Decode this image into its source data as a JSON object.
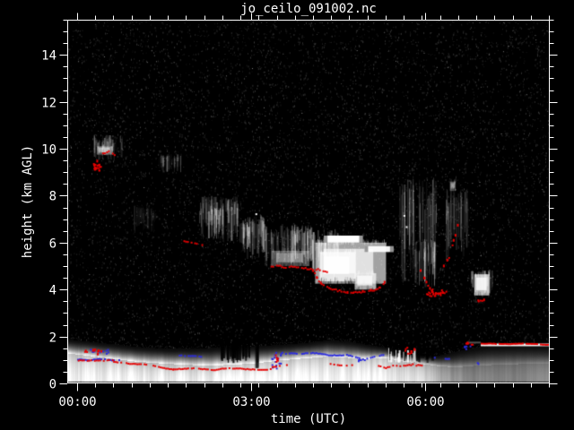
{
  "chart_data": {
    "type": "heatmap",
    "title": "jo_ceilo_091002.nc",
    "xlabel": "time (UTC)",
    "ylabel": "height (km AGL)",
    "x_range": [
      -0.17,
      8.14
    ],
    "y_range_km": [
      0,
      15.5
    ],
    "x_ticks": [
      {
        "value": 0,
        "label": "00:00"
      },
      {
        "value": 3,
        "label": "03:00"
      },
      {
        "value": 6,
        "label": "06:00"
      }
    ],
    "x_minor_step": 0.3125,
    "y_ticks": [
      {
        "value": 0,
        "label": "0"
      },
      {
        "value": 2,
        "label": "2"
      },
      {
        "value": 4,
        "label": "4"
      },
      {
        "value": 6,
        "label": "6"
      },
      {
        "value": 8,
        "label": "8"
      },
      {
        "value": 10,
        "label": "10"
      },
      {
        "value": 12,
        "label": "12"
      },
      {
        "value": 14,
        "label": "14"
      }
    ],
    "y_minor_step": 0.5,
    "colors": {
      "background": "#000000",
      "frame": "#ffffff",
      "text": "#ffffff",
      "red_dots": "#e60000",
      "blue_dots": "#2b2bdf"
    },
    "boundary_layer_profile": [
      [
        -0.17,
        1.3,
        1.9,
        1.0
      ],
      [
        0.0,
        1.25,
        1.85,
        1.0
      ],
      [
        0.5,
        1.1,
        1.72,
        1.0
      ],
      [
        1.0,
        0.95,
        1.58,
        1.0
      ],
      [
        1.5,
        0.86,
        1.5,
        1.0
      ],
      [
        2.0,
        0.8,
        1.5,
        1.0
      ],
      [
        2.5,
        0.8,
        1.55,
        1.0
      ],
      [
        3.0,
        0.86,
        1.6,
        1.0
      ],
      [
        3.5,
        1.0,
        1.66,
        1.0
      ],
      [
        4.0,
        1.1,
        1.76,
        1.0
      ],
      [
        4.3,
        1.16,
        1.86,
        1.0
      ],
      [
        4.7,
        1.1,
        1.8,
        1.0
      ],
      [
        5.0,
        1.06,
        1.66,
        1.0
      ],
      [
        5.3,
        1.1,
        1.56,
        1.0
      ],
      [
        5.6,
        0.96,
        1.36,
        0.95
      ],
      [
        5.9,
        0.86,
        1.22,
        0.85
      ],
      [
        6.2,
        0.76,
        1.2,
        0.65
      ],
      [
        6.5,
        0.7,
        1.36,
        0.5
      ],
      [
        6.8,
        0.76,
        1.52,
        0.45
      ],
      [
        7.1,
        0.8,
        1.62,
        0.45
      ],
      [
        7.6,
        0.84,
        1.66,
        0.45
      ],
      [
        8.14,
        0.84,
        1.62,
        0.45
      ]
    ],
    "cloud_features": [
      {
        "kind": "streaks",
        "t0": 0.28,
        "t1": 0.8,
        "km0": 9.4,
        "km1": 10.6,
        "i": 0.4
      },
      {
        "kind": "blob",
        "t0": 0.34,
        "t1": 0.62,
        "km0": 9.75,
        "km1": 10.1,
        "i": 0.55
      },
      {
        "kind": "streaks",
        "t0": 1.4,
        "t1": 1.78,
        "km0": 8.9,
        "km1": 9.8,
        "i": 0.3
      },
      {
        "kind": "streaks",
        "t0": 0.95,
        "t1": 1.35,
        "km0": 6.3,
        "km1": 7.6,
        "i": 0.16
      },
      {
        "kind": "streaks",
        "t0": 2.1,
        "t1": 2.78,
        "km0": 5.8,
        "km1": 8.0,
        "i": 0.5
      },
      {
        "kind": "streaks",
        "t0": 2.25,
        "t1": 2.52,
        "km0": 6.0,
        "km1": 7.6,
        "i": 0.7
      },
      {
        "kind": "streaks",
        "t0": 2.8,
        "t1": 3.22,
        "km0": 5.1,
        "km1": 7.2,
        "i": 0.6
      },
      {
        "kind": "streaks",
        "t0": 2.82,
        "t1": 2.98,
        "km0": 5.4,
        "km1": 6.9,
        "i": 0.8
      },
      {
        "kind": "streaks",
        "t0": 3.22,
        "t1": 4.02,
        "km0": 4.8,
        "km1": 6.8,
        "i": 0.6
      },
      {
        "kind": "blob",
        "t0": 3.35,
        "t1": 4.0,
        "km0": 5.0,
        "km1": 5.65,
        "i": 0.4
      },
      {
        "kind": "streaks",
        "t0": 4.0,
        "t1": 4.5,
        "km0": 4.1,
        "km1": 6.6,
        "i": 0.75
      },
      {
        "kind": "blob",
        "t0": 4.1,
        "t1": 5.32,
        "km0": 4.25,
        "km1": 6.0,
        "i": 0.85
      },
      {
        "kind": "blob",
        "t0": 4.18,
        "t1": 4.8,
        "km0": 4.35,
        "km1": 5.6,
        "i": 1.0
      },
      {
        "kind": "blob",
        "t0": 4.78,
        "t1": 5.15,
        "km0": 4.0,
        "km1": 4.7,
        "i": 0.9
      },
      {
        "kind": "hline",
        "t0": 4.25,
        "t1": 4.92,
        "km0": 6.0,
        "km1": 6.3,
        "i": 1.0
      },
      {
        "kind": "hline",
        "t0": 4.95,
        "t1": 5.45,
        "km0": 5.6,
        "km1": 5.85,
        "i": 0.95
      },
      {
        "kind": "streaks",
        "t0": 5.55,
        "t1": 6.18,
        "km0": 3.9,
        "km1": 8.8,
        "i": 0.4
      },
      {
        "kind": "streaks",
        "t0": 5.8,
        "t1": 6.18,
        "km0": 3.9,
        "km1": 6.2,
        "i": 0.55
      },
      {
        "kind": "streaks",
        "t0": 6.35,
        "t1": 6.75,
        "km0": 5.0,
        "km1": 8.3,
        "i": 0.32
      },
      {
        "kind": "blob",
        "t0": 6.42,
        "t1": 6.52,
        "km0": 8.2,
        "km1": 8.6,
        "i": 0.45
      },
      {
        "kind": "blob",
        "t0": 6.84,
        "t1": 7.1,
        "km0": 3.75,
        "km1": 4.65,
        "i": 1.0
      },
      {
        "kind": "streaks",
        "t0": 6.78,
        "t1": 7.14,
        "km0": 3.6,
        "km1": 4.85,
        "i": 0.5
      }
    ],
    "white_dots": [
      [
        3.07,
        7.25
      ],
      [
        5.62,
        7.18
      ],
      [
        5.66,
        6.7
      ]
    ],
    "attenuation_gaps": [
      {
        "t0": 2.45,
        "t1": 2.77,
        "km0": 0.85,
        "km1": 1.7,
        "i": 0.9
      },
      {
        "t0": 2.8,
        "t1": 2.97,
        "km0": 0.9,
        "km1": 1.6,
        "i": 0.8
      },
      {
        "t0": 3.05,
        "t1": 3.13,
        "km0": 0.6,
        "km1": 1.55,
        "i": 0.8
      },
      {
        "t0": 5.35,
        "t1": 5.78,
        "km0": 0.95,
        "km1": 1.65,
        "i": 0.85
      },
      {
        "t0": 5.78,
        "t1": 6.12,
        "km0": 0.85,
        "km1": 1.35,
        "i": 0.7
      }
    ],
    "bright_spike_region": {
      "t0": 5.28,
      "t1": 5.8,
      "km_base": 0.9,
      "km_min": 1.05,
      "km_max": 1.55
    },
    "elevated_layer_line": {
      "t0": 6.95,
      "t1": 8.14,
      "km": 1.7,
      "lead_t0": 6.72,
      "lead_t1": 6.95,
      "lead_km": 1.78
    },
    "red_dots": {
      "tracks": [
        {
          "t0": -0.02,
          "t1": 0.62,
          "k0": 1.0,
          "k1": 0.96,
          "w": 0.07,
          "d": 0.75
        },
        {
          "t0": 0.62,
          "t1": 1.65,
          "k0": 0.95,
          "k1": 0.67,
          "w": 0.05,
          "d": 0.8
        },
        {
          "t0": 1.65,
          "t1": 3.35,
          "k0": 0.65,
          "k1": 0.68,
          "w": 0.06,
          "d": 0.85
        },
        {
          "t0": 3.35,
          "t1": 3.62,
          "k0": 0.74,
          "k1": 0.82,
          "w": 0.05,
          "d": 0.6
        },
        {
          "t0": 4.35,
          "t1": 4.75,
          "k0": 0.86,
          "k1": 0.83,
          "w": 0.05,
          "d": 0.35
        },
        {
          "t0": 5.18,
          "t1": 5.95,
          "k0": 0.78,
          "k1": 0.84,
          "w": 0.12,
          "d": 0.7
        },
        {
          "t0": 6.95,
          "t1": 8.13,
          "k0": 1.74,
          "k1": 1.71,
          "w": 0.03,
          "d": 0.9
        },
        {
          "t0": 1.8,
          "t1": 2.16,
          "k0": 6.08,
          "k1": 5.95,
          "w": 0.06,
          "d": 0.45
        },
        {
          "t0": 3.3,
          "t1": 4.3,
          "k0": 5.1,
          "k1": 4.78,
          "w": 0.15,
          "d": 0.8
        }
      ],
      "paths": [
        {
          "d": 0.8,
          "pts": [
            [
              0.3,
              9.35
            ],
            [
              0.34,
              9.55
            ],
            [
              0.4,
              9.75
            ],
            [
              0.47,
              9.88
            ],
            [
              0.54,
              9.9
            ],
            [
              0.6,
              9.82
            ],
            [
              0.66,
              9.7
            ]
          ]
        },
        {
          "d": 0.9,
          "pts": [
            [
              4.05,
              4.85
            ],
            [
              4.12,
              4.5
            ],
            [
              4.2,
              4.25
            ],
            [
              4.35,
              4.05
            ],
            [
              4.55,
              3.95
            ],
            [
              4.75,
              3.92
            ],
            [
              4.95,
              3.96
            ],
            [
              5.1,
              4.02
            ],
            [
              5.2,
              4.12
            ],
            [
              5.28,
              4.35
            ],
            [
              5.33,
              4.62
            ],
            [
              5.3,
              4.85
            ]
          ]
        },
        {
          "d": 0.7,
          "pts": [
            [
              5.9,
              4.9
            ],
            [
              5.97,
              4.55
            ],
            [
              6.03,
              4.2
            ],
            [
              6.1,
              3.95
            ],
            [
              6.22,
              3.85
            ],
            [
              6.35,
              3.95
            ]
          ]
        },
        {
          "d": 0.55,
          "pts": [
            [
              6.3,
              5.05
            ],
            [
              6.36,
              5.3
            ],
            [
              6.42,
              5.5
            ],
            [
              6.47,
              6.15
            ],
            [
              6.51,
              6.45
            ],
            [
              6.57,
              7.15
            ],
            [
              6.61,
              7.38
            ]
          ]
        },
        {
          "d": 0.5,
          "pts": [
            [
              6.8,
              3.62
            ],
            [
              6.9,
              3.55
            ],
            [
              7.0,
              3.6
            ],
            [
              7.08,
              3.72
            ]
          ]
        }
      ],
      "clusters": [
        {
          "t0": 0.1,
          "t1": 0.42,
          "k0": 1.25,
          "k1": 1.5,
          "n": 14
        },
        {
          "t0": 0.27,
          "t1": 0.4,
          "k0": 9.1,
          "k1": 9.45,
          "n": 22
        },
        {
          "t0": 6.0,
          "t1": 6.3,
          "k0": 3.75,
          "k1": 4.05,
          "n": 18
        },
        {
          "t0": 6.68,
          "t1": 6.8,
          "k0": 1.68,
          "k1": 1.8,
          "n": 6
        },
        {
          "t0": 3.4,
          "t1": 3.46,
          "k0": 0.95,
          "k1": 1.25,
          "n": 7
        },
        {
          "t0": 5.62,
          "t1": 5.8,
          "k0": 1.3,
          "k1": 1.6,
          "n": 10
        }
      ]
    },
    "blue_dots": {
      "tracks": [
        {
          "t0": 0.0,
          "t1": 0.72,
          "k0": 1.04,
          "k1": 1.06,
          "w": 0.06,
          "d": 0.8
        },
        {
          "t0": 1.75,
          "t1": 2.14,
          "k0": 1.21,
          "k1": 1.18,
          "w": 0.04,
          "d": 0.7
        },
        {
          "t0": 3.52,
          "t1": 4.6,
          "k0": 1.36,
          "k1": 1.28,
          "w": 0.07,
          "d": 0.75
        },
        {
          "t0": 4.6,
          "t1": 4.95,
          "k0": 1.26,
          "k1": 1.06,
          "w": 0.05,
          "d": 0.7
        },
        {
          "t0": 4.95,
          "t1": 5.32,
          "k0": 1.1,
          "k1": 1.3,
          "w": 0.06,
          "d": 0.7
        },
        {
          "t0": 6.02,
          "t1": 6.4,
          "k0": 1.16,
          "k1": 1.06,
          "w": 0.05,
          "d": 0.4
        }
      ],
      "paths": [],
      "clusters": [
        {
          "t0": 0.15,
          "t1": 0.55,
          "k0": 1.25,
          "k1": 1.48,
          "n": 10
        },
        {
          "t0": 3.33,
          "t1": 3.54,
          "k0": 0.62,
          "k1": 1.4,
          "n": 16
        },
        {
          "t0": 6.62,
          "t1": 6.76,
          "k0": 1.45,
          "k1": 1.72,
          "n": 5
        },
        {
          "t0": 6.84,
          "t1": 6.9,
          "k0": 0.85,
          "k1": 0.95,
          "n": 2
        },
        {
          "t0": 4.78,
          "t1": 4.92,
          "k0": 0.95,
          "k1": 1.05,
          "n": 4
        }
      ]
    },
    "noise": {
      "dark_speckles": 9000,
      "bright_speckles": 380
    }
  }
}
